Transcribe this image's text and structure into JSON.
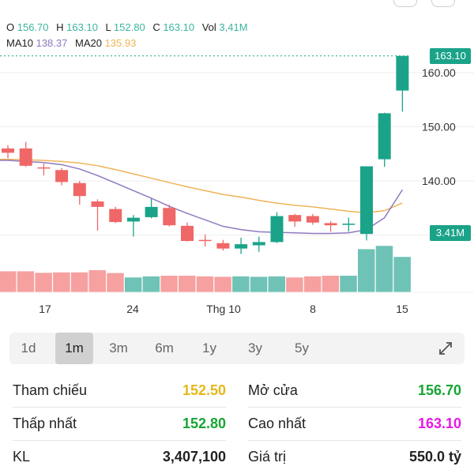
{
  "legend": {
    "o_label": "O",
    "o_value": "156.70",
    "h_label": "H",
    "h_value": "163.10",
    "l_label": "L",
    "l_value": "152.80",
    "c_label": "C",
    "c_value": "163.10",
    "vol_label": "Vol",
    "vol_value": "3,41M",
    "ma10_label": "MA10",
    "ma10_value": "138.37",
    "ma20_label": "MA20",
    "ma20_value": "135.93"
  },
  "colors": {
    "up": "#1aa389",
    "down": "#f06767",
    "up_vol": "#6fc3b6",
    "down_vol": "#f7a0a0",
    "ma10": "#8e7ac0",
    "ma20": "#f0b458",
    "value_teal": "#3bb5a1",
    "value_purple": "#8e7ac0",
    "value_orange": "#f0b458",
    "ref_yellow": "#e5b719",
    "green_text": "#17a534",
    "magenta_text": "#e619e6"
  },
  "chart_data": {
    "type": "candlestick",
    "y_ticks": [
      "160.00",
      "150.00",
      "140.00"
    ],
    "ylim": [
      128,
      163.1
    ],
    "x_tick_labels": [
      "17",
      "24",
      "Thg 10",
      "8",
      "15"
    ],
    "last_price_label": "163.10",
    "volume_label": "3.41M",
    "candles": [
      {
        "o": 146.0,
        "h": 146.6,
        "l": 144.2,
        "c": 145.2,
        "v": 0.95
      },
      {
        "o": 146.0,
        "h": 147.2,
        "l": 142.6,
        "c": 142.8,
        "v": 0.95
      },
      {
        "o": 142.5,
        "h": 143.2,
        "l": 141.0,
        "c": 142.4,
        "v": 0.88
      },
      {
        "o": 142.0,
        "h": 142.4,
        "l": 139.2,
        "c": 139.8,
        "v": 0.9
      },
      {
        "o": 139.6,
        "h": 140.0,
        "l": 135.6,
        "c": 137.2,
        "v": 0.9
      },
      {
        "o": 136.2,
        "h": 136.6,
        "l": 130.8,
        "c": 135.2,
        "v": 1.0
      },
      {
        "o": 134.8,
        "h": 135.2,
        "l": 132.2,
        "c": 132.4,
        "v": 0.87
      },
      {
        "o": 132.5,
        "h": 133.7,
        "l": 129.7,
        "c": 133.2,
        "v": 0.67
      },
      {
        "o": 133.3,
        "h": 136.7,
        "l": 133.1,
        "c": 135.2,
        "v": 0.72
      },
      {
        "o": 135.0,
        "h": 135.6,
        "l": 131.6,
        "c": 131.8,
        "v": 0.75
      },
      {
        "o": 131.7,
        "h": 132.3,
        "l": 128.8,
        "c": 128.9,
        "v": 0.75
      },
      {
        "o": 129.1,
        "h": 130.1,
        "l": 127.9,
        "c": 128.9,
        "v": 0.72
      },
      {
        "o": 128.5,
        "h": 129.1,
        "l": 127.1,
        "c": 127.5,
        "v": 0.7
      },
      {
        "o": 127.5,
        "h": 129.5,
        "l": 126.5,
        "c": 128.3,
        "v": 0.72
      },
      {
        "o": 128.1,
        "h": 129.7,
        "l": 126.9,
        "c": 128.7,
        "v": 0.7
      },
      {
        "o": 128.7,
        "h": 134.2,
        "l": 128.5,
        "c": 133.5,
        "v": 0.72
      },
      {
        "o": 133.7,
        "h": 133.9,
        "l": 131.5,
        "c": 132.5,
        "v": 0.67
      },
      {
        "o": 133.5,
        "h": 133.9,
        "l": 131.9,
        "c": 132.3,
        "v": 0.72
      },
      {
        "o": 132.2,
        "h": 132.6,
        "l": 130.6,
        "c": 131.8,
        "v": 0.75
      },
      {
        "o": 132.0,
        "h": 133.2,
        "l": 130.6,
        "c": 132.1,
        "v": 0.75
      },
      {
        "o": 130.2,
        "h": 142.7,
        "l": 129.0,
        "c": 142.7,
        "v": 1.95
      },
      {
        "o": 144.0,
        "h": 152.6,
        "l": 142.6,
        "c": 152.5,
        "v": 2.1
      },
      {
        "o": 156.7,
        "h": 163.1,
        "l": 152.8,
        "c": 163.1,
        "v": 1.6
      }
    ],
    "ma10": [
      143.8,
      143.6,
      143.4,
      143.0,
      142.2,
      141.0,
      139.6,
      138.2,
      136.8,
      135.3,
      134.0,
      132.8,
      131.6,
      131.0,
      130.6,
      130.5,
      130.4,
      130.3,
      130.3,
      130.4,
      131.0,
      133.2,
      138.37
    ],
    "ma20": [
      144.0,
      143.9,
      143.8,
      143.6,
      143.3,
      142.8,
      142.1,
      141.3,
      140.5,
      139.7,
      138.9,
      138.2,
      137.5,
      137.0,
      136.4,
      135.9,
      135.5,
      135.2,
      134.8,
      134.4,
      134.1,
      134.5,
      135.93
    ]
  },
  "tabs": [
    "1d",
    "1m",
    "3m",
    "6m",
    "1y",
    "3y",
    "5y"
  ],
  "active_tab": "1m",
  "stats": {
    "ref_label": "Tham chiếu",
    "ref_value": "152.50",
    "open_label": "Mở cửa",
    "open_value": "156.70",
    "low_label": "Thấp nhất",
    "low_value": "152.80",
    "high_label": "Cao nhất",
    "high_value": "163.10",
    "vol_label": "KL",
    "vol_value": "3,407,100",
    "value_label": "Giá trị",
    "value_value": "550.0 tỷ"
  }
}
